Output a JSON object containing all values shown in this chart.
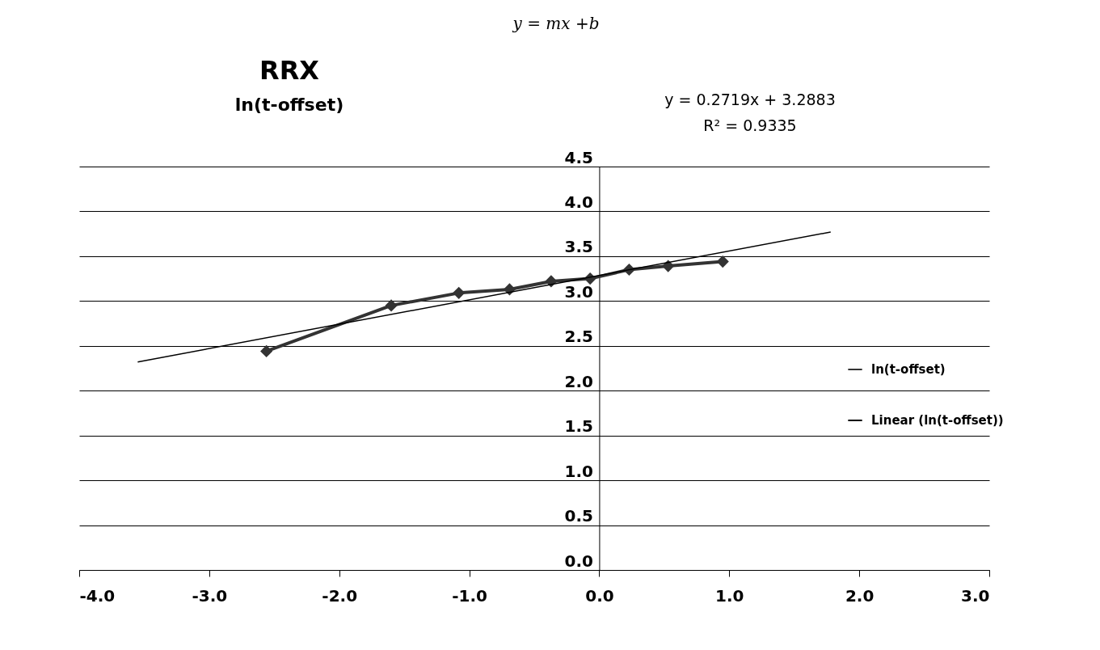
{
  "chart_data": {
    "type": "line",
    "title": "RRX",
    "subtitle": "ln(t-offset)",
    "annotations": [
      "y = mx +b",
      "y = 0.2719x + 3.2883",
      "R² = 0.9335"
    ],
    "xlim": [
      -4,
      3
    ],
    "xticks": [
      {
        "value": -4,
        "label": "-4.0"
      },
      {
        "value": -3,
        "label": "-3.0"
      },
      {
        "value": -2,
        "label": "-2.0"
      },
      {
        "value": -1,
        "label": "-1.0"
      },
      {
        "value": 0,
        "label": "0.0"
      },
      {
        "value": 1,
        "label": "1.0"
      },
      {
        "value": 2,
        "label": "2.0"
      },
      {
        "value": 3,
        "label": "3.0"
      }
    ],
    "ylim": [
      0,
      4.5
    ],
    "yticks": [
      {
        "value": 0,
        "label": "0.0"
      },
      0.5,
      {
        "value": 1,
        "label": "1.0"
      },
      1.5,
      {
        "value": 2,
        "label": "2.0"
      },
      2.5,
      {
        "value": 3,
        "label": "3.0"
      },
      3.5,
      {
        "value": 4,
        "label": "4.0"
      },
      4.5
    ],
    "grid": "y",
    "legend": "right",
    "marker": "diamond",
    "line_style": "solid",
    "series": [
      {
        "name": "ln(t-offset)",
        "color": "#333333",
        "x": [
          -2.56,
          -1.6,
          -1.08,
          -0.69,
          -0.37,
          -0.07,
          0.23,
          0.53,
          0.95
        ],
        "values": [
          2.44,
          2.95,
          3.09,
          3.13,
          3.22,
          3.25,
          3.35,
          3.39,
          3.44
        ]
      },
      {
        "name": "Linear (ln(t-offset))",
        "color": "#000000",
        "type": "line",
        "marker": "none",
        "x": [
          -3.55,
          1.78
        ],
        "values": [
          2.32,
          3.77
        ]
      }
    ]
  }
}
